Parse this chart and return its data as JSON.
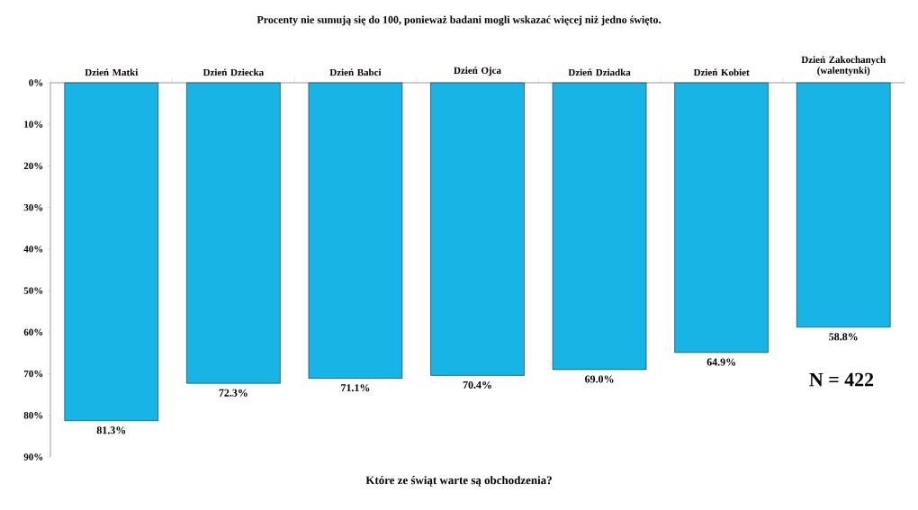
{
  "chart_data": {
    "type": "bar",
    "title": "Które ze  świąt warte są obchodzenia?",
    "subtitle": "Procenty nie sumują się do 100, ponieważ badani mogli wskazać więcej niż jedno święto.",
    "categories": [
      "Dzień Matki",
      "Dzień Dziecka",
      "Dzień Babci",
      "Dzień Ojca",
      "Dzień Dziadka",
      "Dzień Kobiet",
      "Dzień Zakochanych (walentynki)"
    ],
    "values": [
      81.3,
      72.3,
      71.1,
      70.4,
      69.0,
      64.9,
      58.8
    ],
    "value_labels": [
      "81.3%",
      "72.3%",
      "71.1%",
      "70.4%",
      "69.0%",
      "64.9%",
      "58.8%"
    ],
    "color": "#19b4e6",
    "ylim": [
      90,
      0
    ],
    "yticks": [
      {
        "value": 0,
        "label": "0%"
      },
      {
        "value": 10,
        "label": "10%"
      },
      {
        "value": 20,
        "label": "20%"
      },
      {
        "value": 30,
        "label": "30%"
      },
      {
        "value": 40,
        "label": "40%"
      },
      {
        "value": 50,
        "label": "50%"
      },
      {
        "value": 60,
        "label": "60%"
      },
      {
        "value": 70,
        "label": "70%"
      },
      {
        "value": 80,
        "label": "80%"
      },
      {
        "value": 90,
        "label": "90%"
      }
    ],
    "annotations": [
      "N = 422"
    ],
    "grid": false
  }
}
